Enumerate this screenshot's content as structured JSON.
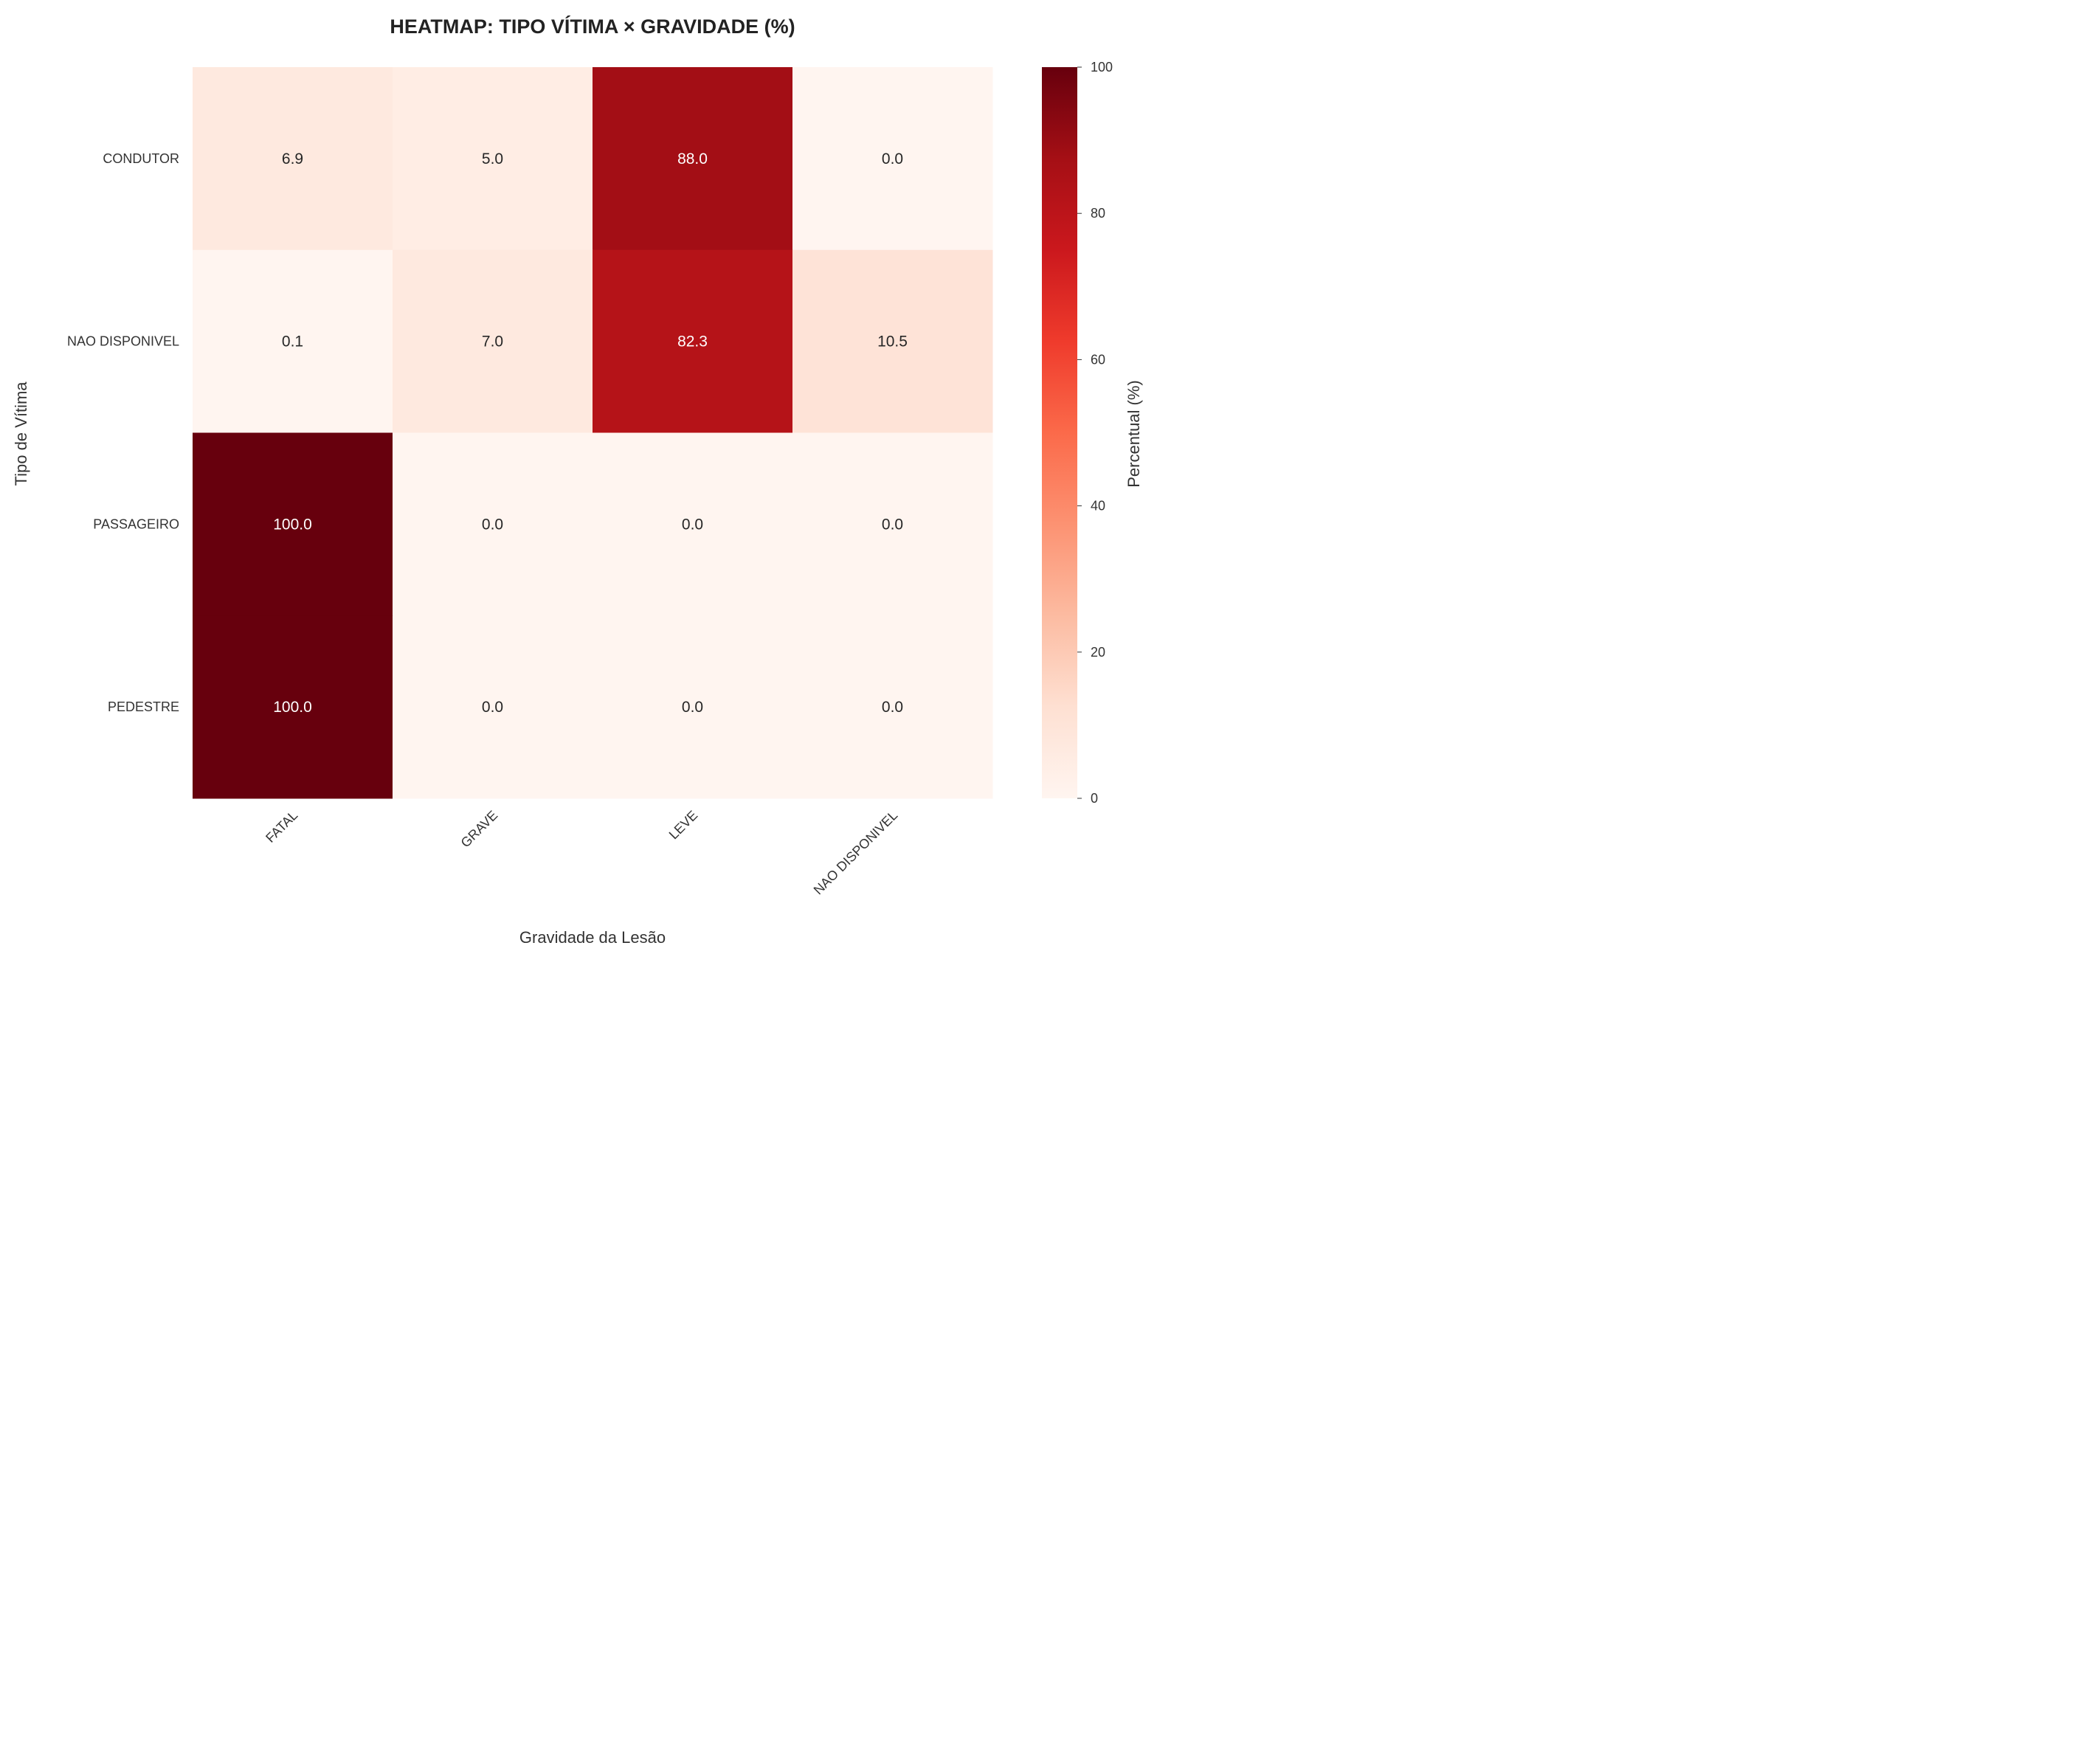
{
  "chart_data": {
    "type": "heatmap",
    "title": "HEATMAP: TIPO VÍTIMA × GRAVIDADE (%)",
    "xlabel": "Gravidade da Lesão",
    "ylabel": "Tipo de Vítima",
    "x_categories": [
      "FATAL",
      "GRAVE",
      "LEVE",
      "NAO DISPONIVEL"
    ],
    "y_categories": [
      "CONDUTOR",
      "NAO DISPONIVEL",
      "PASSAGEIRO",
      "PEDESTRE"
    ],
    "values": [
      [
        6.9,
        5.0,
        88.0,
        0.0
      ],
      [
        0.1,
        7.0,
        82.3,
        10.5
      ],
      [
        100.0,
        0.0,
        0.0,
        0.0
      ],
      [
        100.0,
        0.0,
        0.0,
        0.0
      ]
    ],
    "value_labels": [
      [
        "6.9",
        "5.0",
        "88.0",
        "0.0"
      ],
      [
        "0.1",
        "7.0",
        "82.3",
        "10.5"
      ],
      [
        "100.0",
        "0.0",
        "0.0",
        "0.0"
      ],
      [
        "100.0",
        "0.0",
        "0.0",
        "0.0"
      ]
    ],
    "colorbar": {
      "label": "Percentual (%)",
      "range": [
        0,
        100
      ],
      "ticks": [
        "0",
        "20",
        "40",
        "60",
        "80",
        "100"
      ],
      "colormap": "Reds",
      "stops": [
        "#fff5f0",
        "#fee0d2",
        "#fcbba1",
        "#fc9272",
        "#fb6a4a",
        "#ef3b2c",
        "#cb181d",
        "#a50f15",
        "#67000d"
      ]
    },
    "grid": false
  }
}
